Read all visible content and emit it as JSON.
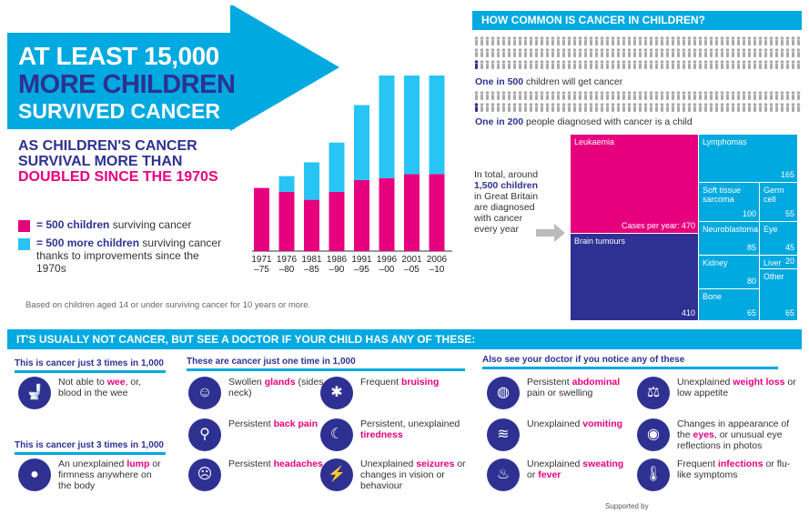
{
  "hero": {
    "line1": "AT LEAST 15,000",
    "line2": "MORE CHILDREN",
    "line3": "SURVIVED CANCER"
  },
  "subheading": {
    "line1": "AS CHILDREN'S CANCER",
    "line2": "SURVIVAL MORE THAN",
    "line3": "DOUBLED SINCE THE 1970S"
  },
  "legend": {
    "pink_key": "= 500 children",
    "pink_rest": " surviving cancer",
    "cyan_key": "= 500 more children",
    "cyan_rest": " surviving cancer thanks to improvements since the 1970s"
  },
  "note": "Based on children aged 14 or under surviving cancer for 10 years or more.",
  "colors": {
    "pink": "#e6007e",
    "cyan": "#27c4f4",
    "navy": "#2e3192",
    "blue": "#00a9e0"
  },
  "chart_data": {
    "type": "bar",
    "stacked": true,
    "categories": [
      [
        "1971",
        "–75"
      ],
      [
        "1976",
        "–80"
      ],
      [
        "1981",
        "–85"
      ],
      [
        "1986",
        "–90"
      ],
      [
        "1991",
        "–95"
      ],
      [
        "1996",
        "–00"
      ],
      [
        "2001",
        "–05"
      ],
      [
        "2006",
        "–10"
      ]
    ],
    "series": [
      {
        "values": [
          3.2,
          3.0,
          2.6,
          3.0,
          3.6,
          3.7,
          3.9,
          3.9
        ]
      },
      {
        "values": [
          0,
          0.8,
          1.9,
          2.5,
          3.8,
          5.2,
          5.0,
          5.0
        ]
      }
    ],
    "ylim": [
      0,
      9.5
    ]
  },
  "common": {
    "header": "HOW COMMON IS CANCER IN CHILDREN?",
    "stat1_key": "One in 500",
    "stat1_rest": " children will get cancer",
    "stat2_key": "One in 200",
    "stat2_rest": " people diagnosed with cancer is a child",
    "total_pre": "In total, around ",
    "total_key": "1,500 children",
    "total_post": " in Great Britain are diagnosed with cancer every year"
  },
  "treemap": [
    {
      "label": "Leukaemia",
      "value": "Cases per year: 470",
      "color": "#e6007e",
      "x": 0,
      "y": 0,
      "w": 140,
      "h": 108
    },
    {
      "label": "Brain tumours",
      "value": "410",
      "color": "#2e3192",
      "x": 0,
      "y": 109,
      "w": 140,
      "h": 95
    },
    {
      "label": "Lymphomas",
      "value": "165",
      "color": "#00a9e0",
      "x": 141,
      "y": 0,
      "w": 108,
      "h": 52
    },
    {
      "label": "Soft tissue sarcoma",
      "value": "100",
      "color": "#00a9e0",
      "x": 141,
      "y": 53,
      "w": 66,
      "h": 42
    },
    {
      "label": "Germ cell",
      "value": "55",
      "color": "#00a9e0",
      "x": 208,
      "y": 53,
      "w": 41,
      "h": 42
    },
    {
      "label": "Neuroblastoma",
      "value": "85",
      "color": "#00a9e0",
      "x": 141,
      "y": 96,
      "w": 66,
      "h": 36
    },
    {
      "label": "Eye",
      "value": "45",
      "color": "#00a9e0",
      "x": 208,
      "y": 96,
      "w": 41,
      "h": 36
    },
    {
      "label": "Kidney",
      "value": "80",
      "color": "#00a9e0",
      "x": 141,
      "y": 133,
      "w": 66,
      "h": 36
    },
    {
      "label": "Liver",
      "value": "20",
      "color": "#00a9e0",
      "x": 208,
      "y": 133,
      "w": 41,
      "h": 14
    },
    {
      "label": "Other",
      "value": "65",
      "color": "#00a9e0",
      "x": 208,
      "y": 148,
      "w": 41,
      "h": 56
    },
    {
      "label": "Bone",
      "value": "65",
      "color": "#00a9e0",
      "x": 141,
      "y": 170,
      "w": 66,
      "h": 34
    }
  ],
  "symptoms": {
    "header": "IT'S USUALLY NOT CANCER, BUT SEE A DOCTOR IF YOUR CHILD HAS ANY OF THESE:",
    "col1a_title": "This is cancer just 3 times in 1,000",
    "col1b_title": "This is cancer just 3 times in 1,000",
    "col2_title": "These are cancer just one time in 1,000",
    "col3_title": "Also see your doctor if you notice any of these",
    "items": [
      {
        "icon": "toilet-icon",
        "glyph": "🚽",
        "pre": "Not able to ",
        "key": "wee",
        "post": ", or, blood in the wee"
      },
      {
        "icon": "lump-icon",
        "glyph": "●",
        "pre": "An unexplained ",
        "key": "lump",
        "post": " or firmness anywhere on the body"
      },
      {
        "icon": "neck-icon",
        "glyph": "☺",
        "pre": "Swollen ",
        "key": "glands",
        "post": " (sides of neck)"
      },
      {
        "icon": "back-icon",
        "glyph": "⚲",
        "pre": "Persistent ",
        "key": "back pain",
        "post": ""
      },
      {
        "icon": "head-icon",
        "glyph": "☹",
        "pre": "Persistent ",
        "key": "headaches",
        "post": ""
      },
      {
        "icon": "bruise-icon",
        "glyph": "✱",
        "pre": "Frequent ",
        "key": "bruising",
        "post": ""
      },
      {
        "icon": "bed-icon",
        "glyph": "☾",
        "pre": "Persistent, unexplained ",
        "key": "tiredness",
        "post": ""
      },
      {
        "icon": "seizure-icon",
        "glyph": "⚡",
        "pre": "Unexplained ",
        "key": "seizures",
        "post": " or changes in vision or behaviour"
      },
      {
        "icon": "abdomen-icon",
        "glyph": "◍",
        "pre": "Persistent ",
        "key": "abdominal",
        "post": " pain or swelling"
      },
      {
        "icon": "vomit-icon",
        "glyph": "≋",
        "pre": "Unexplained ",
        "key": "vomiting",
        "post": ""
      },
      {
        "icon": "sweat-icon",
        "glyph": "♨",
        "pre": "Unexplained ",
        "key": "sweating",
        "post": " or ",
        "key2": "fever"
      },
      {
        "icon": "scale-icon",
        "glyph": "⚖",
        "pre": "Unexplained ",
        "key": "weight loss",
        "post": " or low appetite"
      },
      {
        "icon": "eye-icon",
        "glyph": "◉",
        "pre": "Changes in appearance of the ",
        "key": "eyes",
        "post": ", or unusual eye reflections in photos"
      },
      {
        "icon": "thermometer-icon",
        "glyph": "🌡",
        "pre": "Frequent ",
        "key": "infections",
        "post": " or flu-like symptoms"
      }
    ]
  },
  "supported": "Supported by"
}
